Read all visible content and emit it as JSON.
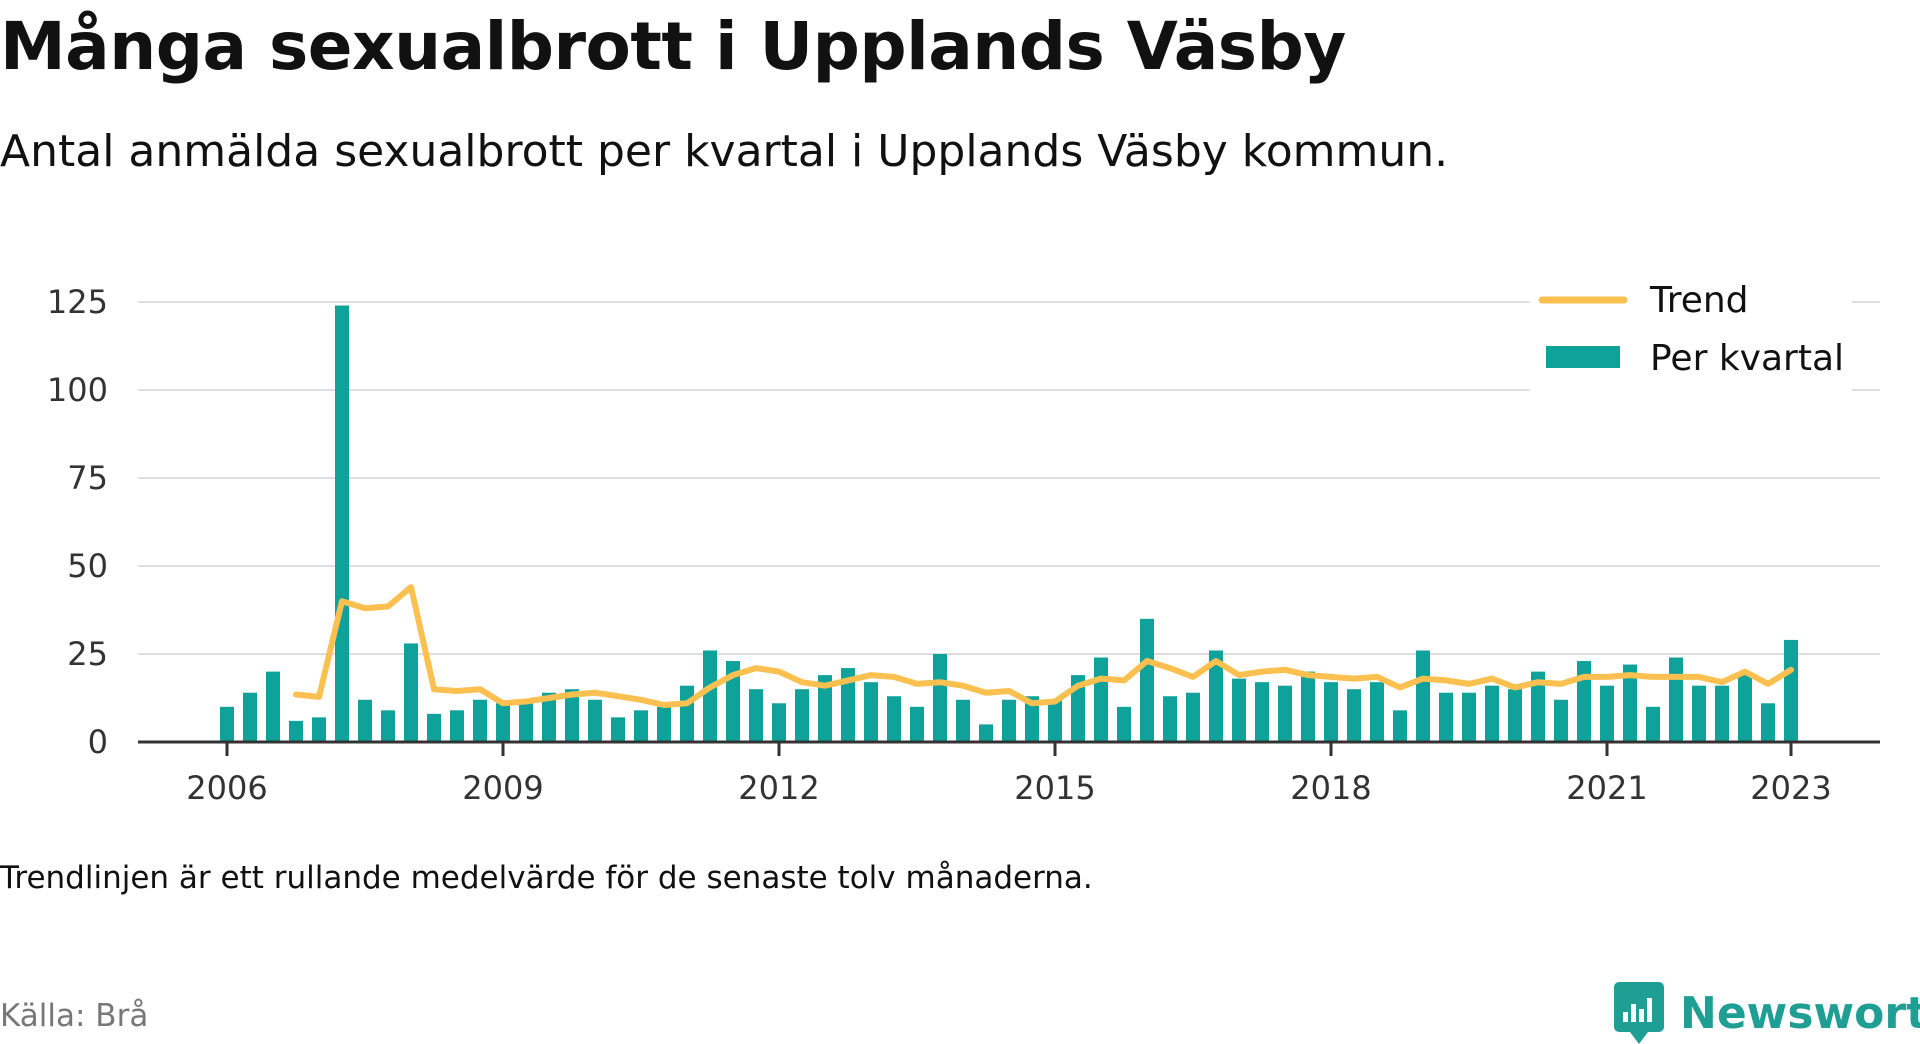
{
  "title": "Många sexualbrott i Upplands Väsby",
  "subtitle": "Antal anmälda sexualbrott per kvartal i Upplands Väsby kommun.",
  "note": "Trendlinjen är ett rullande medelvärde för de senaste tolv månaderna.",
  "source": "Källa: Brå",
  "brand": {
    "name": "Newsworthy",
    "icon": "newsworthy-logo-icon"
  },
  "colors": {
    "bar": "#0ea29a",
    "trend": "#fbc04f",
    "grid": "#dddddd",
    "axis": "#333333"
  },
  "chart_data": {
    "type": "bar",
    "ylim": [
      0,
      125
    ],
    "yticks": [
      0,
      25,
      50,
      75,
      100,
      125
    ],
    "xticks": [
      "2006",
      "2009",
      "2012",
      "2015",
      "2018",
      "2021",
      "2023"
    ],
    "grid": true,
    "legend_position": "top-right",
    "x_start": "2006 Q1",
    "x_end": "2023 Q1",
    "series": [
      {
        "name": "Per kvartal",
        "type": "bar",
        "values": [
          10,
          14,
          20,
          6,
          7,
          124,
          12,
          9,
          28,
          8,
          9,
          12,
          11,
          11,
          14,
          15,
          12,
          7,
          9,
          10,
          16,
          26,
          23,
          15,
          11,
          15,
          19,
          21,
          17,
          13,
          10,
          25,
          12,
          5,
          12,
          13,
          12,
          19,
          24,
          10,
          35,
          13,
          14,
          26,
          18,
          17,
          16,
          20,
          17,
          15,
          17,
          9,
          26,
          14,
          14,
          16,
          15,
          20,
          12,
          23,
          16,
          22,
          10,
          24,
          16,
          16,
          19,
          11,
          29
        ]
      },
      {
        "name": "Trend",
        "type": "line",
        "values": [
          null,
          null,
          null,
          13.5,
          12.8,
          40,
          38,
          38.5,
          44,
          15,
          14.5,
          15,
          11,
          11.5,
          12.5,
          13.5,
          14,
          13,
          12,
          10.5,
          11,
          15.5,
          19,
          21,
          20,
          17,
          16,
          17.5,
          19,
          18.5,
          16.5,
          17,
          16,
          14,
          14.5,
          11,
          11.5,
          16,
          18,
          17.5,
          23,
          21,
          18.5,
          23,
          19,
          20,
          20.5,
          19,
          18.5,
          18,
          18.5,
          15.5,
          18,
          17.5,
          16.5,
          18,
          15.5,
          17,
          16.5,
          18.5,
          18.5,
          19,
          18.5,
          18.5,
          18.5,
          17,
          20,
          16.5,
          20.5
        ]
      }
    ]
  }
}
